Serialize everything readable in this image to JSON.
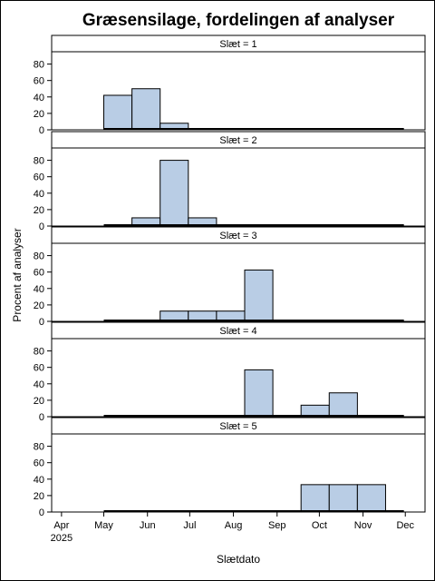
{
  "chart_data": {
    "type": "bar",
    "title": "Græsensilage, fordelingen af analyser",
    "xlabel": "Slætdato",
    "ylabel": "Procent af analyser",
    "bin_width_days": 20,
    "x_ticks": [
      {
        "date": "2025-04-01",
        "label": "Apr",
        "sublabel": "2025"
      },
      {
        "date": "2025-05-01",
        "label": "May"
      },
      {
        "date": "2025-06-01",
        "label": "Jun"
      },
      {
        "date": "2025-07-01",
        "label": "Jul"
      },
      {
        "date": "2025-08-01",
        "label": "Aug"
      },
      {
        "date": "2025-09-01",
        "label": "Sep"
      },
      {
        "date": "2025-10-01",
        "label": "Oct"
      },
      {
        "date": "2025-11-01",
        "label": "Nov"
      },
      {
        "date": "2025-12-01",
        "label": "Dec"
      }
    ],
    "xlim": [
      "2025-03-25",
      "2025-12-15"
    ],
    "ylim": [
      0,
      95
    ],
    "y_ticks": [
      0,
      20,
      40,
      60,
      80
    ],
    "bar_fill": "#b9cde5",
    "bar_stroke": "#000000",
    "baseline": {
      "start": "2025-05-01",
      "end": "2025-11-30"
    },
    "panels": [
      {
        "label": "Slæt = 1",
        "bins": [
          {
            "start": "2025-05-01",
            "value": 42
          },
          {
            "start": "2025-05-21",
            "value": 50
          },
          {
            "start": "2025-06-10",
            "value": 8
          }
        ]
      },
      {
        "label": "Slæt = 2",
        "bins": [
          {
            "start": "2025-05-21",
            "value": 10
          },
          {
            "start": "2025-06-10",
            "value": 80
          },
          {
            "start": "2025-06-30",
            "value": 10
          }
        ]
      },
      {
        "label": "Slæt = 3",
        "bins": [
          {
            "start": "2025-06-10",
            "value": 12.5
          },
          {
            "start": "2025-06-30",
            "value": 12.5
          },
          {
            "start": "2025-07-20",
            "value": 12.5
          },
          {
            "start": "2025-08-09",
            "value": 62.5
          }
        ]
      },
      {
        "label": "Slæt = 4",
        "bins": [
          {
            "start": "2025-08-09",
            "value": 57
          },
          {
            "start": "2025-09-18",
            "value": 14
          },
          {
            "start": "2025-10-08",
            "value": 29
          }
        ]
      },
      {
        "label": "Slæt = 5",
        "bins": [
          {
            "start": "2025-09-18",
            "value": 33.3
          },
          {
            "start": "2025-10-08",
            "value": 33.3
          },
          {
            "start": "2025-10-28",
            "value": 33.3
          }
        ]
      }
    ]
  }
}
